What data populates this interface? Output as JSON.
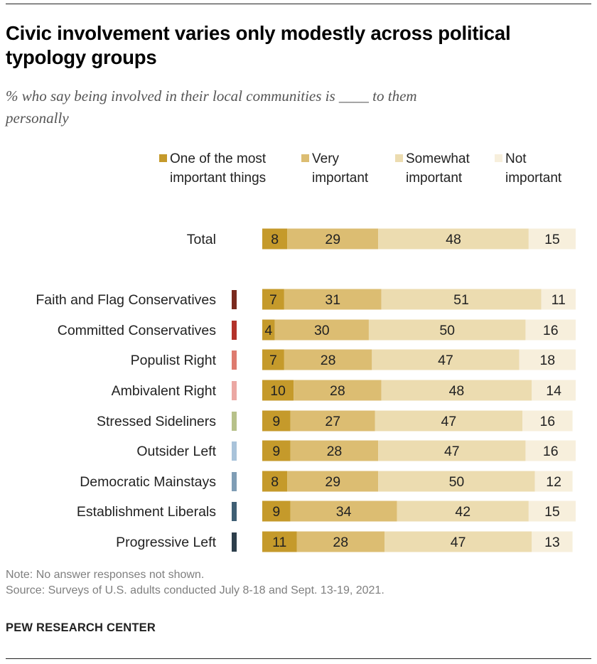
{
  "header": {
    "title": "Civic involvement varies only modestly across political typology groups",
    "subtitle": "% who say being involved in their local communities is ____ to them personally"
  },
  "footer": {
    "note": "Note: No answer responses not shown.",
    "source": "Source: Surveys of U.S. adults conducted July 8-18 and Sept. 13-19, 2021.",
    "brand": "PEW RESEARCH CENTER"
  },
  "chart_data": {
    "type": "bar",
    "orientation": "horizontal",
    "stacked": true,
    "grid": false,
    "legend_position": "top",
    "categories": [
      "Total",
      "Faith and Flag Conservatives",
      "Committed Conservatives",
      "Populist Right",
      "Ambivalent Right",
      "Stressed Sideliners",
      "Outsider Left",
      "Democratic Mainstays",
      "Establishment Liberals",
      "Progressive Left"
    ],
    "category_markers": [
      null,
      "#7a2a1e",
      "#b3322a",
      "#de7b6f",
      "#eba8a3",
      "#b7c18a",
      "#a9c3da",
      "#7f9db5",
      "#3f5f74",
      "#2d3e4b"
    ],
    "series": [
      {
        "name": "One of the most important things",
        "color": "#c59a2b",
        "values": [
          8,
          7,
          4,
          7,
          10,
          9,
          9,
          8,
          9,
          11
        ]
      },
      {
        "name": "Very important",
        "color": "#dcbd72",
        "values": [
          29,
          31,
          30,
          28,
          28,
          27,
          28,
          29,
          34,
          28
        ]
      },
      {
        "name": "Somewhat important",
        "color": "#ecdcb0",
        "values": [
          48,
          51,
          50,
          47,
          48,
          47,
          47,
          50,
          42,
          47
        ]
      },
      {
        "name": "Not important",
        "color": "#f7efdc",
        "values": [
          15,
          11,
          16,
          18,
          14,
          16,
          16,
          12,
          15,
          13
        ]
      }
    ],
    "xlim": [
      0,
      100
    ]
  }
}
